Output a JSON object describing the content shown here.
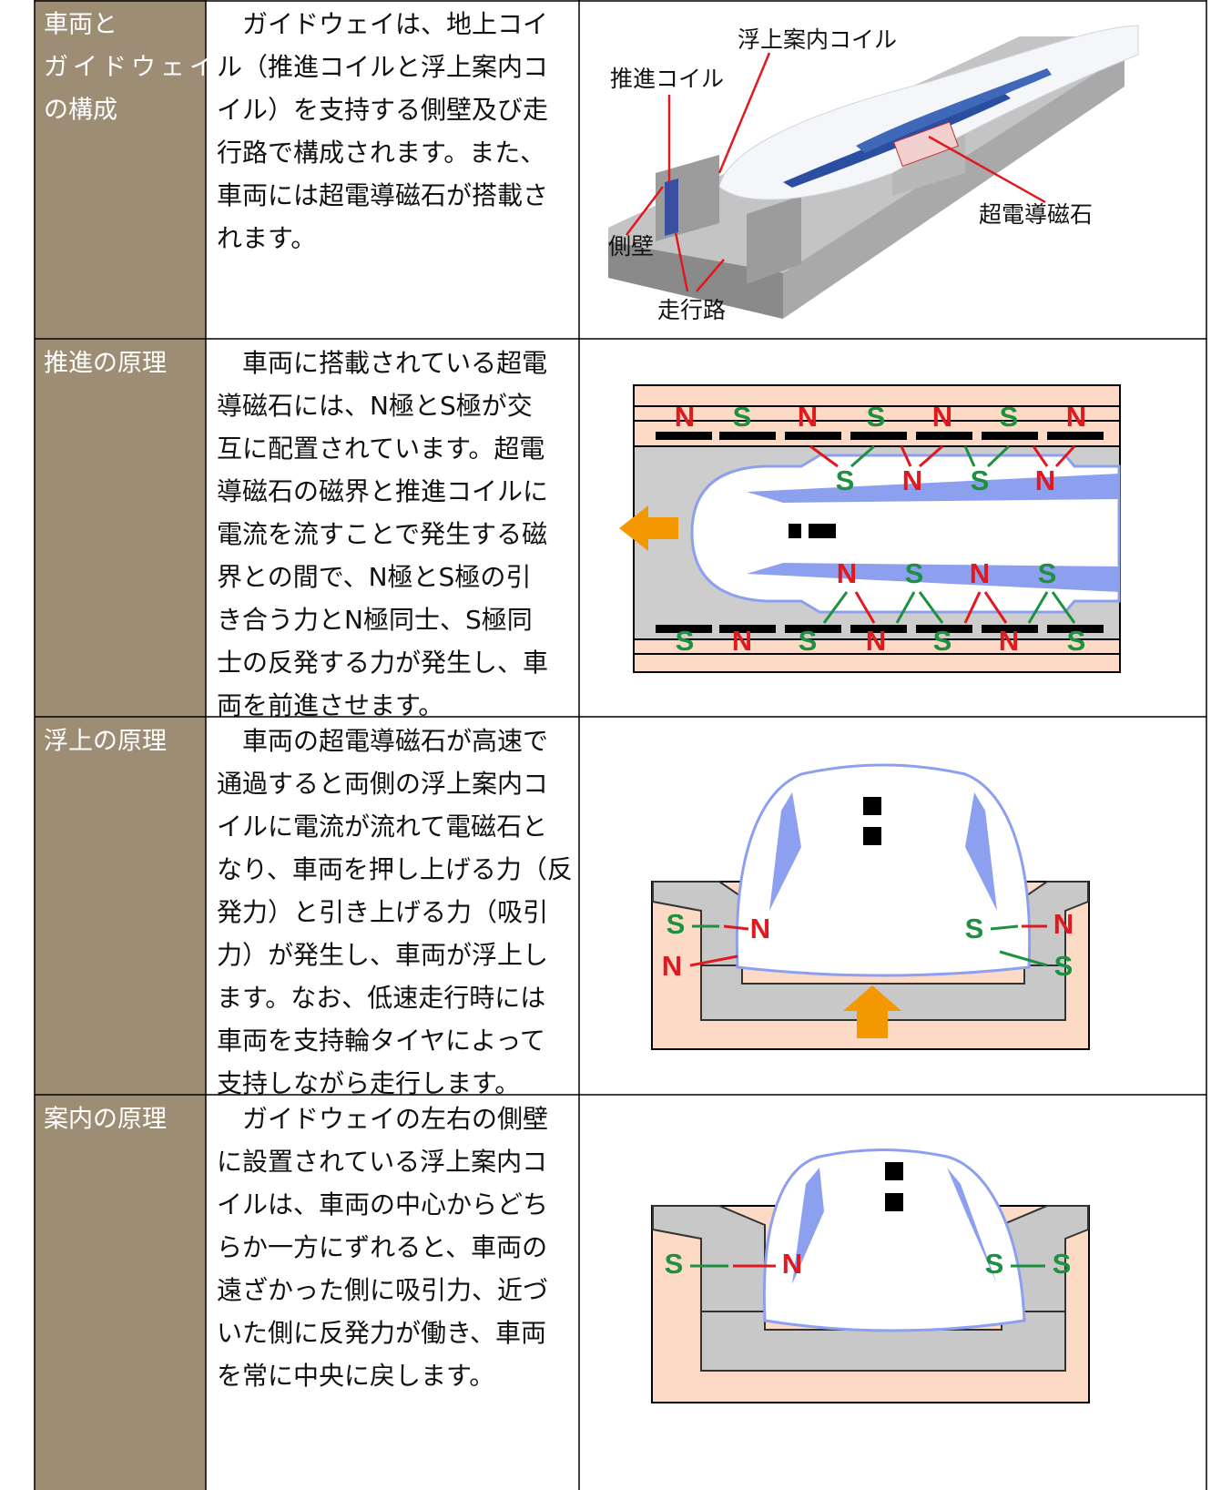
{
  "rows": [
    {
      "label": [
        "車両と",
        "ガイドウェイ",
        "の構成"
      ],
      "text": [
        "ガイドウェイは、地上コイ",
        "ル（推進コイルと浮上案内コ",
        "イル）を支持する側壁及び走",
        "行路で構成されます。また、",
        "車両には超電導磁石が搭載さ",
        "れます。"
      ]
    },
    {
      "label": [
        "推進の原理"
      ],
      "text": [
        "車両に搭載されている超電",
        "導磁石には、N極とS極が交",
        "互に配置されています。超電",
        "導磁石の磁界と推進コイルに",
        "電流を流すことで発生する磁",
        "界との間で、N極とS極の引",
        "き合う力とN極同士、S極同",
        "士の反発する力が発生し、車",
        "両を前進させます。"
      ]
    },
    {
      "label": [
        "浮上の原理"
      ],
      "text": [
        "車両の超電導磁石が高速で",
        "通過すると両側の浮上案内コ",
        "イルに電流が流れて電磁石と",
        "なり、車両を押し上げる力（反",
        "発力）と引き上げる力（吸引",
        "力）が発生し、車両が浮上し",
        "ます。なお、低速走行時には",
        "車両を支持輪タイヤによって",
        "支持しながら走行します。"
      ]
    },
    {
      "label": [
        "案内の原理"
      ],
      "text": [
        "ガイドウェイの左右の側壁",
        "に設置されている浮上案内コ",
        "イルは、車両の中心からどち",
        "らか一方にずれると、車両の",
        "遠ざかった側に吸引力、近づ",
        "いた側に反発力が働き、車両",
        "を常に中央に戻します。"
      ]
    }
  ],
  "diagrams": {
    "structure": {
      "labels": [
        "浮上案内コイル",
        "推進コイル",
        "超電導磁石",
        "側壁",
        "走行路"
      ]
    },
    "propulsion": {
      "ground_top": [
        "N",
        "S",
        "N",
        "S",
        "N",
        "S",
        "N"
      ],
      "vehicle_top": [
        "S",
        "N",
        "S",
        "N"
      ],
      "vehicle_bottom": [
        "N",
        "S",
        "N",
        "S"
      ],
      "ground_bottom": [
        "S",
        "N",
        "S",
        "N",
        "S",
        "N",
        "S"
      ]
    },
    "levitation": {
      "poles": [
        "S",
        "N",
        "N",
        "S",
        "N",
        "S"
      ]
    },
    "guidance": {
      "poles": [
        "S",
        "N",
        "S",
        "S"
      ]
    }
  }
}
